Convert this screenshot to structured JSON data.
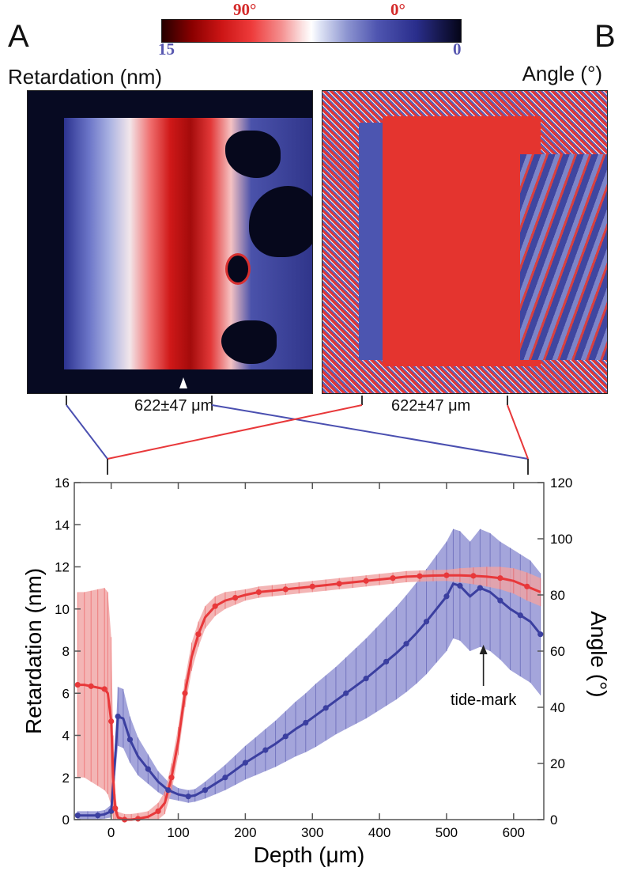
{
  "panel_a": {
    "letter": "A",
    "title": "Retardation (nm)",
    "measurement": "622±47 μm"
  },
  "panel_b": {
    "letter": "B",
    "title": "Angle (°)",
    "measurement": "622±47 μm"
  },
  "colorbar": {
    "angle_label_left": "90°",
    "angle_label_right": "0°",
    "retardation_label_left": "15",
    "retardation_label_right": "0",
    "angle_label_color": "#d42a2a",
    "retardation_label_color": "#5757b0"
  },
  "colors": {
    "red": "#e8383a",
    "red_band": "#f0a3a3",
    "blue": "#3b3fa0",
    "blue_band": "#8d8fd2"
  },
  "chart_data": {
    "type": "line",
    "xlabel": "Depth (μm)",
    "ylabel": "Retardation (nm)",
    "y2label": "Angle (°)",
    "xlim": [
      -55,
      645
    ],
    "ylim": [
      0,
      16
    ],
    "y2lim": [
      0,
      120
    ],
    "x_ticks": [
      0,
      100,
      200,
      300,
      400,
      500,
      600
    ],
    "x_tick_labels": [
      "0",
      "100",
      "200",
      "300",
      "400",
      "500",
      "600"
    ],
    "y_ticks": [
      0,
      2,
      4,
      6,
      8,
      10,
      12,
      14,
      16
    ],
    "y_tick_labels": [
      "0",
      "2",
      "4",
      "6",
      "8",
      "10",
      "12",
      "14",
      "16"
    ],
    "y2_ticks": [
      0,
      20,
      40,
      60,
      80,
      100,
      120
    ],
    "y2_tick_labels": [
      "0",
      "20",
      "40",
      "60",
      "80",
      "100",
      "120"
    ],
    "annotation": {
      "text": "tide-mark",
      "x": 555,
      "y": 8.3
    },
    "series": [
      {
        "axis": "left",
        "color": "#3b3fa0",
        "band_color": "#8d8fd2",
        "points": [
          [
            -50,
            0.2
          ],
          [
            -35,
            0.2
          ],
          [
            -20,
            0.2
          ],
          [
            -10,
            0.25
          ],
          [
            0,
            0.4
          ],
          [
            5,
            2.5
          ],
          [
            10,
            4.9
          ],
          [
            18,
            4.8
          ],
          [
            28,
            3.8
          ],
          [
            40,
            3.0
          ],
          [
            55,
            2.4
          ],
          [
            70,
            1.8
          ],
          [
            85,
            1.4
          ],
          [
            100,
            1.2
          ],
          [
            115,
            1.1
          ],
          [
            125,
            1.15
          ],
          [
            140,
            1.4
          ],
          [
            155,
            1.7
          ],
          [
            170,
            2.0
          ],
          [
            185,
            2.35
          ],
          [
            200,
            2.7
          ],
          [
            215,
            3.0
          ],
          [
            230,
            3.3
          ],
          [
            245,
            3.6
          ],
          [
            260,
            3.95
          ],
          [
            275,
            4.3
          ],
          [
            290,
            4.6
          ],
          [
            305,
            4.95
          ],
          [
            320,
            5.3
          ],
          [
            335,
            5.65
          ],
          [
            350,
            6.0
          ],
          [
            365,
            6.35
          ],
          [
            380,
            6.7
          ],
          [
            395,
            7.1
          ],
          [
            410,
            7.5
          ],
          [
            425,
            7.9
          ],
          [
            440,
            8.35
          ],
          [
            455,
            8.85
          ],
          [
            470,
            9.4
          ],
          [
            485,
            10.0
          ],
          [
            500,
            10.6
          ],
          [
            510,
            11.2
          ],
          [
            520,
            11.1
          ],
          [
            535,
            10.6
          ],
          [
            550,
            11.0
          ],
          [
            565,
            10.8
          ],
          [
            580,
            10.4
          ],
          [
            595,
            10.0
          ],
          [
            610,
            9.7
          ],
          [
            625,
            9.4
          ],
          [
            640,
            8.8
          ]
        ],
        "err": [
          [
            -50,
            0.2
          ],
          [
            -35,
            0.2
          ],
          [
            -20,
            0.2
          ],
          [
            -10,
            0.2
          ],
          [
            0,
            0.3
          ],
          [
            5,
            0.7
          ],
          [
            10,
            1.4
          ],
          [
            18,
            1.4
          ],
          [
            28,
            1.1
          ],
          [
            40,
            0.9
          ],
          [
            55,
            0.7
          ],
          [
            70,
            0.5
          ],
          [
            85,
            0.4
          ],
          [
            100,
            0.3
          ],
          [
            115,
            0.3
          ],
          [
            125,
            0.3
          ],
          [
            140,
            0.4
          ],
          [
            155,
            0.5
          ],
          [
            170,
            0.6
          ],
          [
            185,
            0.7
          ],
          [
            200,
            0.8
          ],
          [
            215,
            0.9
          ],
          [
            230,
            1.0
          ],
          [
            245,
            1.1
          ],
          [
            260,
            1.2
          ],
          [
            275,
            1.3
          ],
          [
            290,
            1.4
          ],
          [
            305,
            1.5
          ],
          [
            320,
            1.55
          ],
          [
            335,
            1.6
          ],
          [
            350,
            1.7
          ],
          [
            365,
            1.8
          ],
          [
            380,
            1.9
          ],
          [
            395,
            2.0
          ],
          [
            410,
            2.1
          ],
          [
            425,
            2.2
          ],
          [
            440,
            2.3
          ],
          [
            455,
            2.4
          ],
          [
            470,
            2.5
          ],
          [
            485,
            2.55
          ],
          [
            500,
            2.6
          ],
          [
            510,
            2.6
          ],
          [
            520,
            2.6
          ],
          [
            535,
            2.6
          ],
          [
            550,
            2.8
          ],
          [
            565,
            2.8
          ],
          [
            580,
            2.8
          ],
          [
            595,
            2.9
          ],
          [
            610,
            2.9
          ],
          [
            625,
            2.9
          ],
          [
            640,
            2.9
          ]
        ]
      },
      {
        "axis": "right",
        "color": "#e8383a",
        "band_color": "#f0a3a3",
        "points": [
          [
            -50,
            48
          ],
          [
            -40,
            48
          ],
          [
            -30,
            47.5
          ],
          [
            -20,
            47
          ],
          [
            -10,
            46.5
          ],
          [
            -5,
            45
          ],
          [
            0,
            35
          ],
          [
            3,
            15
          ],
          [
            6,
            4
          ],
          [
            10,
            0.8
          ],
          [
            20,
            0
          ],
          [
            30,
            0
          ],
          [
            40,
            0.3
          ],
          [
            55,
            1
          ],
          [
            70,
            3
          ],
          [
            80,
            6
          ],
          [
            90,
            15
          ],
          [
            100,
            28
          ],
          [
            110,
            45
          ],
          [
            120,
            58
          ],
          [
            130,
            66
          ],
          [
            140,
            72
          ],
          [
            155,
            76
          ],
          [
            170,
            78
          ],
          [
            185,
            79
          ],
          [
            200,
            80
          ],
          [
            220,
            81
          ],
          [
            240,
            81.5
          ],
          [
            260,
            82
          ],
          [
            280,
            82.5
          ],
          [
            300,
            83
          ],
          [
            320,
            83.5
          ],
          [
            340,
            84
          ],
          [
            360,
            84.5
          ],
          [
            380,
            85
          ],
          [
            400,
            85.5
          ],
          [
            420,
            86
          ],
          [
            440,
            86.5
          ],
          [
            460,
            86.7
          ],
          [
            480,
            86.9
          ],
          [
            500,
            87
          ],
          [
            520,
            87
          ],
          [
            540,
            86.8
          ],
          [
            560,
            86.5
          ],
          [
            580,
            86
          ],
          [
            600,
            85
          ],
          [
            620,
            83
          ],
          [
            640,
            81
          ]
        ],
        "err": [
          [
            -50,
            33
          ],
          [
            -40,
            33
          ],
          [
            -30,
            34
          ],
          [
            -20,
            35
          ],
          [
            -10,
            36
          ],
          [
            -5,
            36
          ],
          [
            0,
            30
          ],
          [
            3,
            15
          ],
          [
            6,
            5
          ],
          [
            10,
            2
          ],
          [
            20,
            2
          ],
          [
            30,
            2
          ],
          [
            40,
            2
          ],
          [
            55,
            2
          ],
          [
            70,
            3
          ],
          [
            80,
            4
          ],
          [
            90,
            5
          ],
          [
            100,
            5
          ],
          [
            110,
            5
          ],
          [
            120,
            5
          ],
          [
            130,
            4.5
          ],
          [
            140,
            4
          ],
          [
            155,
            3.5
          ],
          [
            170,
            3
          ],
          [
            185,
            2.5
          ],
          [
            200,
            2
          ],
          [
            220,
            2
          ],
          [
            240,
            2
          ],
          [
            260,
            2
          ],
          [
            280,
            2
          ],
          [
            300,
            2
          ],
          [
            320,
            2
          ],
          [
            340,
            2
          ],
          [
            360,
            2
          ],
          [
            380,
            2
          ],
          [
            400,
            2
          ],
          [
            420,
            2
          ],
          [
            440,
            2
          ],
          [
            460,
            2
          ],
          [
            480,
            2
          ],
          [
            500,
            2
          ],
          [
            520,
            2.5
          ],
          [
            540,
            3
          ],
          [
            560,
            3.5
          ],
          [
            580,
            4
          ],
          [
            600,
            4.5
          ],
          [
            620,
            5
          ],
          [
            640,
            5
          ]
        ]
      }
    ]
  }
}
